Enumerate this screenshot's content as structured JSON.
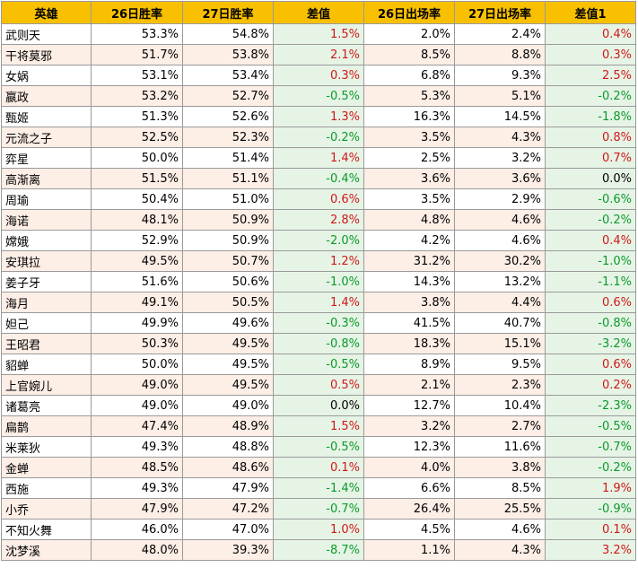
{
  "colors": {
    "header_bg": "#f8c000",
    "row_odd_bg": "#ffffff",
    "row_even_bg": "#fdeee6",
    "diff_bg": "#e6f4e6",
    "positive": "#d01818",
    "negative": "#0a9a2a",
    "neutral": "#000000"
  },
  "table": {
    "headers": [
      "英雄",
      "26日胜率",
      "27日胜率",
      "差值",
      "26日出场率",
      "27日出场率",
      "差值1"
    ],
    "rows": [
      [
        "武则天",
        "53.3%",
        "54.8%",
        "1.5%",
        "2.0%",
        "2.4%",
        "0.4%"
      ],
      [
        "干将莫邪",
        "51.7%",
        "53.8%",
        "2.1%",
        "8.5%",
        "8.8%",
        "0.3%"
      ],
      [
        "女娲",
        "53.1%",
        "53.4%",
        "0.3%",
        "6.8%",
        "9.3%",
        "2.5%"
      ],
      [
        "嬴政",
        "53.2%",
        "52.7%",
        "-0.5%",
        "5.3%",
        "5.1%",
        "-0.2%"
      ],
      [
        "甄姬",
        "51.3%",
        "52.6%",
        "1.3%",
        "16.3%",
        "14.5%",
        "-1.8%"
      ],
      [
        "元流之子",
        "52.5%",
        "52.3%",
        "-0.2%",
        "3.5%",
        "4.3%",
        "0.8%"
      ],
      [
        "弈星",
        "50.0%",
        "51.4%",
        "1.4%",
        "2.5%",
        "3.2%",
        "0.7%"
      ],
      [
        "高渐离",
        "51.5%",
        "51.1%",
        "-0.4%",
        "3.6%",
        "3.6%",
        "0.0%"
      ],
      [
        "周瑜",
        "50.4%",
        "51.0%",
        "0.6%",
        "3.5%",
        "2.9%",
        "-0.6%"
      ],
      [
        "海诺",
        "48.1%",
        "50.9%",
        "2.8%",
        "4.8%",
        "4.6%",
        "-0.2%"
      ],
      [
        "嫦娥",
        "52.9%",
        "50.9%",
        "-2.0%",
        "4.2%",
        "4.6%",
        "0.4%"
      ],
      [
        "安琪拉",
        "49.5%",
        "50.7%",
        "1.2%",
        "31.2%",
        "30.2%",
        "-1.0%"
      ],
      [
        "姜子牙",
        "51.6%",
        "50.6%",
        "-1.0%",
        "14.3%",
        "13.2%",
        "-1.1%"
      ],
      [
        "海月",
        "49.1%",
        "50.5%",
        "1.4%",
        "3.8%",
        "4.4%",
        "0.6%"
      ],
      [
        "妲己",
        "49.9%",
        "49.6%",
        "-0.3%",
        "41.5%",
        "40.7%",
        "-0.8%"
      ],
      [
        "王昭君",
        "50.3%",
        "49.5%",
        "-0.8%",
        "18.3%",
        "15.1%",
        "-3.2%"
      ],
      [
        "貂蝉",
        "50.0%",
        "49.5%",
        "-0.5%",
        "8.9%",
        "9.5%",
        "0.6%"
      ],
      [
        "上官婉儿",
        "49.0%",
        "49.5%",
        "0.5%",
        "2.1%",
        "2.3%",
        "0.2%"
      ],
      [
        "诸葛亮",
        "49.0%",
        "49.0%",
        "0.0%",
        "12.7%",
        "10.4%",
        "-2.3%"
      ],
      [
        "扁鹊",
        "47.4%",
        "48.9%",
        "1.5%",
        "3.2%",
        "2.7%",
        "-0.5%"
      ],
      [
        "米莱狄",
        "49.3%",
        "48.8%",
        "-0.5%",
        "12.3%",
        "11.6%",
        "-0.7%"
      ],
      [
        "金蝉",
        "48.5%",
        "48.6%",
        "0.1%",
        "4.0%",
        "3.8%",
        "-0.2%"
      ],
      [
        "西施",
        "49.3%",
        "47.9%",
        "-1.4%",
        "6.6%",
        "8.5%",
        "1.9%"
      ],
      [
        "小乔",
        "47.9%",
        "47.2%",
        "-0.7%",
        "26.4%",
        "25.5%",
        "-0.9%"
      ],
      [
        "不知火舞",
        "46.0%",
        "47.0%",
        "1.0%",
        "4.5%",
        "4.6%",
        "0.1%"
      ],
      [
        "沈梦溪",
        "48.0%",
        "39.3%",
        "-8.7%",
        "1.1%",
        "4.3%",
        "3.2%"
      ]
    ]
  }
}
